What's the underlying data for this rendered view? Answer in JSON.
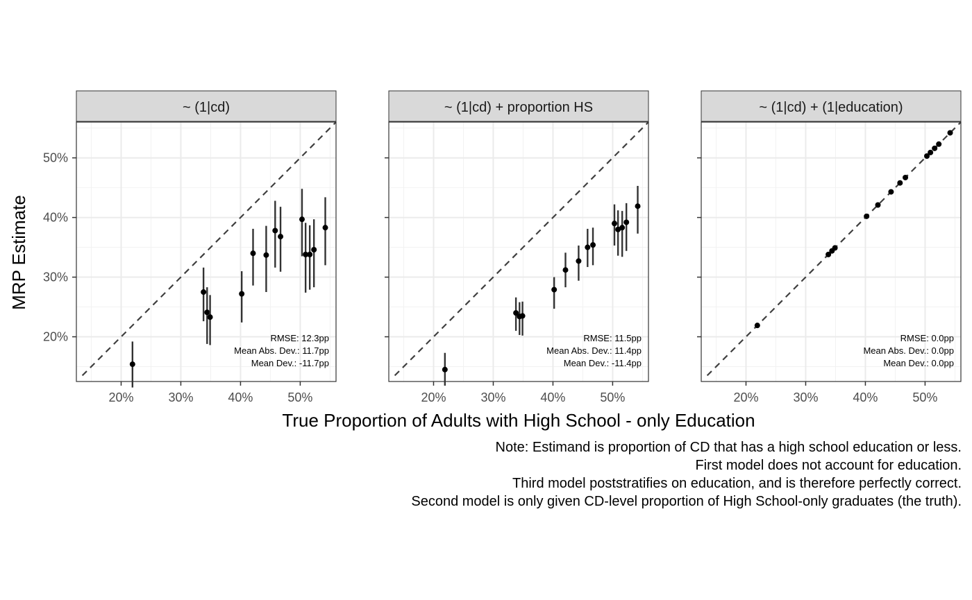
{
  "chart_data": {
    "type": "scatter",
    "ylabel": "MRP Estimate",
    "xlabel": "True Proportion of Adults with High School - only Education",
    "x_ticks": [
      20,
      30,
      40,
      50
    ],
    "y_ticks": [
      20,
      30,
      40,
      50
    ],
    "tick_suffix": "%",
    "xlim": [
      12.5,
      56
    ],
    "ylim": [
      12.5,
      56
    ],
    "grid": true,
    "reference_line": "identity (dashed)",
    "panels": [
      {
        "title": "~ (1|cd)",
        "stats": [
          "RMSE: 12.3pp",
          "Mean Abs. Dev.: 11.7pp",
          "Mean Dev.: -11.7pp"
        ],
        "points": [
          {
            "x": 21.9,
            "y": 15.4,
            "lo": 11.5,
            "hi": 19.2
          },
          {
            "x": 33.8,
            "y": 27.5,
            "lo": 22.6,
            "hi": 31.6
          },
          {
            "x": 34.4,
            "y": 24.1,
            "lo": 18.8,
            "hi": 28.3
          },
          {
            "x": 34.9,
            "y": 23.3,
            "lo": 18.6,
            "hi": 27.0
          },
          {
            "x": 40.2,
            "y": 27.2,
            "lo": 22.4,
            "hi": 31.0
          },
          {
            "x": 42.1,
            "y": 34.0,
            "lo": 28.6,
            "hi": 38.1
          },
          {
            "x": 44.3,
            "y": 33.7,
            "lo": 27.5,
            "hi": 38.6
          },
          {
            "x": 45.8,
            "y": 37.8,
            "lo": 31.6,
            "hi": 42.8
          },
          {
            "x": 46.7,
            "y": 36.8,
            "lo": 30.9,
            "hi": 41.8
          },
          {
            "x": 50.3,
            "y": 39.7,
            "lo": 33.5,
            "hi": 44.8
          },
          {
            "x": 50.9,
            "y": 33.8,
            "lo": 27.4,
            "hi": 39.1
          },
          {
            "x": 51.6,
            "y": 33.8,
            "lo": 27.9,
            "hi": 38.7
          },
          {
            "x": 52.3,
            "y": 34.6,
            "lo": 28.3,
            "hi": 39.7
          },
          {
            "x": 54.2,
            "y": 38.3,
            "lo": 32.0,
            "hi": 43.4
          }
        ]
      },
      {
        "title": "~ (1|cd) + proportion HS",
        "stats": [
          "RMSE: 11.5pp",
          "Mean Abs. Dev.: 11.4pp",
          "Mean Dev.: -11.4pp"
        ],
        "points": [
          {
            "x": 21.9,
            "y": 14.5,
            "lo": 11.8,
            "hi": 17.3
          },
          {
            "x": 33.8,
            "y": 24.0,
            "lo": 21.0,
            "hi": 26.6
          },
          {
            "x": 34.4,
            "y": 23.4,
            "lo": 20.3,
            "hi": 25.8
          },
          {
            "x": 34.9,
            "y": 23.5,
            "lo": 20.2,
            "hi": 25.9
          },
          {
            "x": 40.2,
            "y": 27.9,
            "lo": 24.7,
            "hi": 30.0
          },
          {
            "x": 42.1,
            "y": 31.2,
            "lo": 28.3,
            "hi": 34.1
          },
          {
            "x": 44.3,
            "y": 32.7,
            "lo": 29.4,
            "hi": 35.3
          },
          {
            "x": 45.8,
            "y": 35.0,
            "lo": 31.7,
            "hi": 38.1
          },
          {
            "x": 46.7,
            "y": 35.4,
            "lo": 32.0,
            "hi": 38.3
          },
          {
            "x": 50.3,
            "y": 39.0,
            "lo": 35.3,
            "hi": 42.2
          },
          {
            "x": 50.9,
            "y": 38.0,
            "lo": 33.6,
            "hi": 41.2
          },
          {
            "x": 51.6,
            "y": 38.3,
            "lo": 33.4,
            "hi": 41.1
          },
          {
            "x": 52.3,
            "y": 39.2,
            "lo": 34.4,
            "hi": 42.4
          },
          {
            "x": 54.2,
            "y": 41.9,
            "lo": 37.3,
            "hi": 45.3
          }
        ]
      },
      {
        "title": "~ (1|cd) + (1|education)",
        "stats": [
          "RMSE: 0.0pp",
          "Mean Abs. Dev.: 0.0pp",
          "Mean Dev.: 0.0pp"
        ],
        "points": [
          {
            "x": 21.9,
            "y": 21.9,
            "lo": 21.9,
            "hi": 21.9
          },
          {
            "x": 33.8,
            "y": 33.8,
            "lo": 33.8,
            "hi": 33.8
          },
          {
            "x": 34.4,
            "y": 34.4,
            "lo": 34.4,
            "hi": 34.4
          },
          {
            "x": 34.9,
            "y": 34.9,
            "lo": 34.9,
            "hi": 34.9
          },
          {
            "x": 40.2,
            "y": 40.2,
            "lo": 40.2,
            "hi": 40.2
          },
          {
            "x": 42.1,
            "y": 42.1,
            "lo": 42.1,
            "hi": 42.1
          },
          {
            "x": 44.3,
            "y": 44.3,
            "lo": 44.3,
            "hi": 44.3
          },
          {
            "x": 45.8,
            "y": 45.8,
            "lo": 45.8,
            "hi": 45.8
          },
          {
            "x": 46.7,
            "y": 46.7,
            "lo": 46.7,
            "hi": 46.7
          },
          {
            "x": 50.3,
            "y": 50.3,
            "lo": 50.3,
            "hi": 50.3
          },
          {
            "x": 50.9,
            "y": 50.9,
            "lo": 50.9,
            "hi": 50.9
          },
          {
            "x": 51.6,
            "y": 51.6,
            "lo": 51.6,
            "hi": 51.6
          },
          {
            "x": 52.3,
            "y": 52.3,
            "lo": 52.3,
            "hi": 52.3
          },
          {
            "x": 54.2,
            "y": 54.2,
            "lo": 54.2,
            "hi": 54.2
          }
        ]
      }
    ],
    "notes": [
      "Note: Estimand is proportion of CD that has a high school education or less.",
      "First model does not account for education.",
      "Third model poststratifies on education, and is therefore perfectly correct.",
      "Second model is only given CD-level proportion of High School-only graduates (the truth)."
    ]
  }
}
